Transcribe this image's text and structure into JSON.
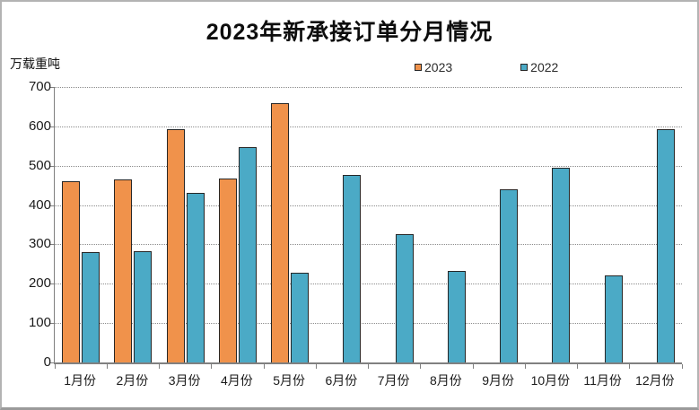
{
  "title": "2023年新承接订单分月情况",
  "unit_label": "万载重吨",
  "colors": {
    "series_2023": "#F0924B",
    "series_2022": "#4BAAC6",
    "bar_border": "#262626",
    "gridline": "#8c8c8c",
    "axis": "#808080"
  },
  "chart_data": {
    "type": "bar",
    "categories": [
      "1月份",
      "2月份",
      "3月份",
      "4月份",
      "5月份",
      "6月份",
      "7月份",
      "8月份",
      "9月份",
      "10月份",
      "11月份",
      "12月份"
    ],
    "series": [
      {
        "name": "2023",
        "color": "#F0924B",
        "values": [
          461,
          465,
          594,
          467,
          658,
          null,
          null,
          null,
          null,
          null,
          null,
          null
        ]
      },
      {
        "name": "2022",
        "color": "#4BAAC6",
        "values": [
          281,
          283,
          430,
          548,
          229,
          476,
          326,
          232,
          440,
          494,
          221,
          592
        ]
      }
    ],
    "title": "2023年新承接订单分月情况",
    "xlabel": "",
    "ylabel": "万载重吨",
    "ylim": [
      0,
      700
    ],
    "yticks": [
      0,
      100,
      200,
      300,
      400,
      500,
      600,
      700
    ],
    "grid": "horizontal-dotted",
    "legend_position": "top-center"
  }
}
